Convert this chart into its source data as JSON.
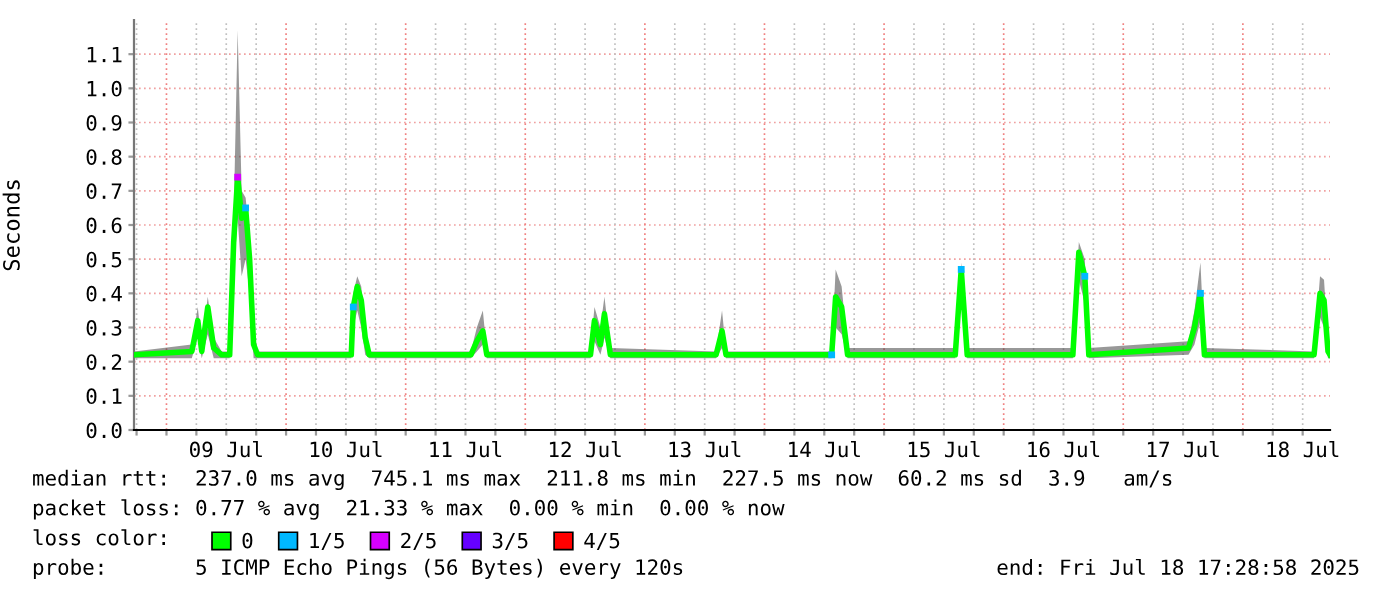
{
  "chart_data": {
    "type": "line",
    "ylabel": "Seconds",
    "legend_title": "loss color:",
    "legend": "bottom",
    "grid": true,
    "xlim": [
      "2025-07-08T17:29",
      "2025-07-18T17:29"
    ],
    "ylim": [
      0,
      1.2
    ],
    "yticks": [
      {
        "value": 0,
        "label": "0.0"
      },
      {
        "value": 0.1,
        "label": "0.1"
      },
      {
        "value": 0.2,
        "label": "0.2"
      },
      {
        "value": 0.3,
        "label": "0.3"
      },
      {
        "value": 0.4,
        "label": "0.4"
      },
      {
        "value": 0.5,
        "label": "0.5"
      },
      {
        "value": 0.6,
        "label": "0.6"
      },
      {
        "value": 0.7,
        "label": "0.7"
      },
      {
        "value": 0.8,
        "label": "0.8"
      },
      {
        "value": 0.9,
        "label": "0.9"
      },
      {
        "value": 1.0,
        "label": "1.0"
      },
      {
        "value": 1.1,
        "label": "1.1"
      }
    ],
    "xticks": [
      {
        "value": "2025-07-08T18:00",
        "label": null
      },
      {
        "value": "2025-07-09T00:00",
        "label": null
      },
      {
        "value": "2025-07-09T06:00",
        "label": null
      },
      {
        "value": "2025-07-09T12:00",
        "label": "09 Jul"
      },
      {
        "value": "2025-07-09T18:00",
        "label": null
      },
      {
        "value": "2025-07-10T00:00",
        "label": null
      },
      {
        "value": "2025-07-10T06:00",
        "label": null
      },
      {
        "value": "2025-07-10T12:00",
        "label": "10 Jul"
      },
      {
        "value": "2025-07-10T18:00",
        "label": null
      },
      {
        "value": "2025-07-11T00:00",
        "label": null
      },
      {
        "value": "2025-07-11T06:00",
        "label": null
      },
      {
        "value": "2025-07-11T12:00",
        "label": "11 Jul"
      },
      {
        "value": "2025-07-11T18:00",
        "label": null
      },
      {
        "value": "2025-07-12T00:00",
        "label": null
      },
      {
        "value": "2025-07-12T06:00",
        "label": null
      },
      {
        "value": "2025-07-12T12:00",
        "label": "12 Jul"
      },
      {
        "value": "2025-07-12T18:00",
        "label": null
      },
      {
        "value": "2025-07-13T00:00",
        "label": null
      },
      {
        "value": "2025-07-13T06:00",
        "label": null
      },
      {
        "value": "2025-07-13T12:00",
        "label": "13 Jul"
      },
      {
        "value": "2025-07-13T18:00",
        "label": null
      },
      {
        "value": "2025-07-14T00:00",
        "label": null
      },
      {
        "value": "2025-07-14T06:00",
        "label": null
      },
      {
        "value": "2025-07-14T12:00",
        "label": "14 Jul"
      },
      {
        "value": "2025-07-14T18:00",
        "label": null
      },
      {
        "value": "2025-07-15T00:00",
        "label": null
      },
      {
        "value": "2025-07-15T06:00",
        "label": null
      },
      {
        "value": "2025-07-15T12:00",
        "label": "15 Jul"
      },
      {
        "value": "2025-07-15T18:00",
        "label": null
      },
      {
        "value": "2025-07-16T00:00",
        "label": null
      },
      {
        "value": "2025-07-16T06:00",
        "label": null
      },
      {
        "value": "2025-07-16T12:00",
        "label": "16 Jul"
      },
      {
        "value": "2025-07-16T18:00",
        "label": null
      },
      {
        "value": "2025-07-17T00:00",
        "label": null
      },
      {
        "value": "2025-07-17T06:00",
        "label": null
      },
      {
        "value": "2025-07-17T12:00",
        "label": "17 Jul"
      },
      {
        "value": "2025-07-17T18:00",
        "label": null
      },
      {
        "value": "2025-07-18T00:00",
        "label": null
      },
      {
        "value": "2025-07-18T06:00",
        "label": null
      },
      {
        "value": "2025-07-18T12:00",
        "label": "18 Jul"
      }
    ],
    "series": [
      {
        "name": "0",
        "color": "#00ff00",
        "x": [
          "2025-07-08T17:29",
          "2025-07-09T05:05",
          "2025-07-09T06:17",
          "2025-07-09T07:05",
          "2025-07-09T08:17",
          "2025-07-09T09:29",
          "2025-07-09T11:05",
          "2025-07-09T12:41",
          "2025-07-09T13:29",
          "2025-07-09T14:17",
          "2025-07-09T15:05",
          "2025-07-09T15:53",
          "2025-07-09T16:41",
          "2025-07-09T17:29",
          "2025-07-09T18:17",
          "2025-07-10T13:05",
          "2025-07-10T13:29",
          "2025-07-10T14:17",
          "2025-07-10T15:05",
          "2025-07-10T15:53",
          "2025-07-10T16:41",
          "2025-07-11T13:05",
          "2025-07-11T14:17",
          "2025-07-11T15:29",
          "2025-07-11T16:17",
          "2025-07-12T13:05",
          "2025-07-12T13:53",
          "2025-07-12T15:05",
          "2025-07-12T15:53",
          "2025-07-12T17:05",
          "2025-07-13T14:17",
          "2025-07-13T15:29",
          "2025-07-13T16:17",
          "2025-07-14T13:29",
          "2025-07-14T14:17",
          "2025-07-14T15:29",
          "2025-07-14T16:41",
          "2025-07-15T14:17",
          "2025-07-15T15:29",
          "2025-07-15T16:41",
          "2025-07-16T13:53",
          "2025-07-16T15:05",
          "2025-07-16T16:17",
          "2025-07-16T17:05",
          "2025-07-17T13:05",
          "2025-07-17T14:17",
          "2025-07-17T15:29",
          "2025-07-17T16:17",
          "2025-07-18T14:17",
          "2025-07-18T15:29",
          "2025-07-18T16:17",
          "2025-07-18T17:05",
          "2025-07-18T17:29"
        ],
        "values": [
          0.22,
          0.23,
          0.32,
          0.23,
          0.36,
          0.24,
          0.22,
          0.22,
          0.55,
          0.74,
          0.62,
          0.65,
          0.5,
          0.25,
          0.22,
          0.22,
          0.36,
          0.42,
          0.38,
          0.27,
          0.22,
          0.22,
          0.26,
          0.29,
          0.22,
          0.22,
          0.32,
          0.25,
          0.34,
          0.22,
          0.22,
          0.29,
          0.22,
          0.22,
          0.39,
          0.36,
          0.22,
          0.22,
          0.47,
          0.22,
          0.22,
          0.52,
          0.45,
          0.22,
          0.24,
          0.3,
          0.4,
          0.22,
          0.22,
          0.4,
          0.38,
          0.23,
          0.22
        ],
        "lower": [
          0.21,
          0.21,
          0.27,
          0.21,
          0.28,
          0.21,
          0.21,
          0.21,
          0.45,
          0.62,
          0.45,
          0.5,
          0.4,
          0.21,
          0.21,
          0.21,
          0.3,
          0.35,
          0.3,
          0.22,
          0.21,
          0.21,
          0.23,
          0.25,
          0.21,
          0.21,
          0.26,
          0.22,
          0.27,
          0.21,
          0.21,
          0.24,
          0.21,
          0.21,
          0.3,
          0.28,
          0.21,
          0.21,
          0.37,
          0.21,
          0.21,
          0.44,
          0.37,
          0.21,
          0.22,
          0.25,
          0.32,
          0.21,
          0.21,
          0.33,
          0.3,
          0.21,
          0.21
        ],
        "upper": [
          0.23,
          0.25,
          0.36,
          0.25,
          0.39,
          0.27,
          0.23,
          0.23,
          0.62,
          1.17,
          0.7,
          0.68,
          0.56,
          0.3,
          0.23,
          0.23,
          0.4,
          0.45,
          0.42,
          0.3,
          0.23,
          0.23,
          0.3,
          0.35,
          0.23,
          0.23,
          0.36,
          0.3,
          0.39,
          0.24,
          0.23,
          0.35,
          0.23,
          0.23,
          0.47,
          0.42,
          0.24,
          0.24,
          0.49,
          0.24,
          0.24,
          0.55,
          0.5,
          0.24,
          0.26,
          0.35,
          0.49,
          0.24,
          0.23,
          0.45,
          0.44,
          0.25,
          0.23
        ]
      },
      {
        "name": "1/5",
        "type": "scatter",
        "color": "#00b8ff",
        "marker": "square",
        "x": [
          "2025-07-09T15:53",
          "2025-07-10T13:29",
          "2025-07-14T13:29",
          "2025-07-15T15:29",
          "2025-07-16T16:17",
          "2025-07-17T15:29"
        ],
        "values": [
          0.65,
          0.36,
          0.22,
          0.47,
          0.45,
          0.4
        ]
      },
      {
        "name": "2/5",
        "type": "scatter",
        "color": "#d600ff",
        "marker": "square",
        "x": [
          "2025-07-09T14:17"
        ],
        "values": [
          0.74
        ]
      },
      {
        "name": "3/5",
        "type": "scatter",
        "color": "#6600ff"
      },
      {
        "name": "4/5",
        "type": "scatter",
        "color": "#ff0000"
      }
    ],
    "annotations": [
      "median rtt:  237.0 ms avg  745.1 ms max  211.8 ms min  227.5 ms now  60.2 ms sd  3.9   am/s",
      "packet loss: 0.77 % avg  21.33 % max  0.00 % min  0.00 % now",
      "probe:       5 ICMP Echo Pings (56 Bytes) every 120s",
      "end: Fri Jul 18 17:28:58 2025"
    ]
  }
}
